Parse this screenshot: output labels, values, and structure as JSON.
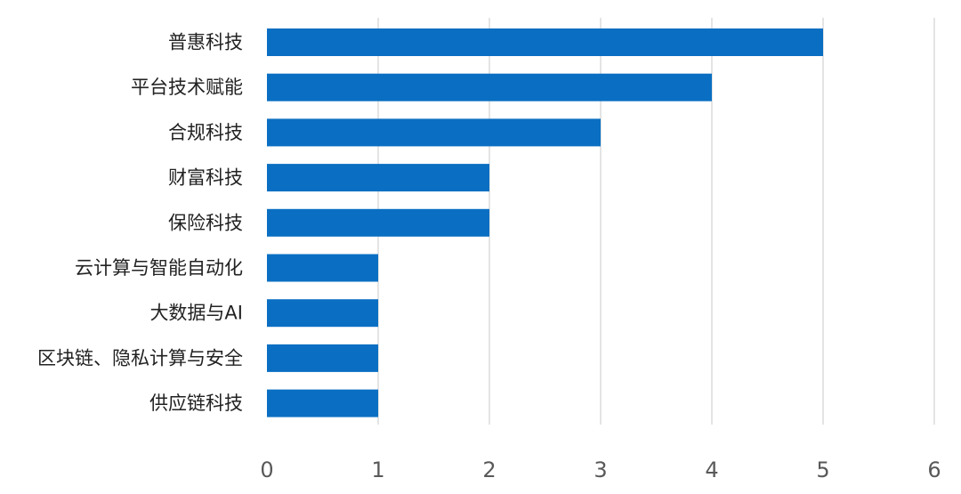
{
  "chart_data": {
    "type": "bar",
    "orientation": "horizontal",
    "categories": [
      "普惠科技",
      "平台技术赋能",
      "合规科技",
      "财富科技",
      "保险科技",
      "云计算与智能自动化",
      "大数据与AI",
      "区块链、隐私计算与安全",
      "供应链科技"
    ],
    "values": [
      5,
      4,
      3,
      2,
      2,
      1,
      1,
      1,
      1
    ],
    "xlim": [
      0,
      6
    ],
    "x_ticks": [
      "0",
      "1",
      "2",
      "3",
      "4",
      "5",
      "6"
    ],
    "grid": true,
    "legend": "none",
    "bar_color": "#0a6fc2",
    "title": "",
    "xlabel": "",
    "ylabel": ""
  }
}
